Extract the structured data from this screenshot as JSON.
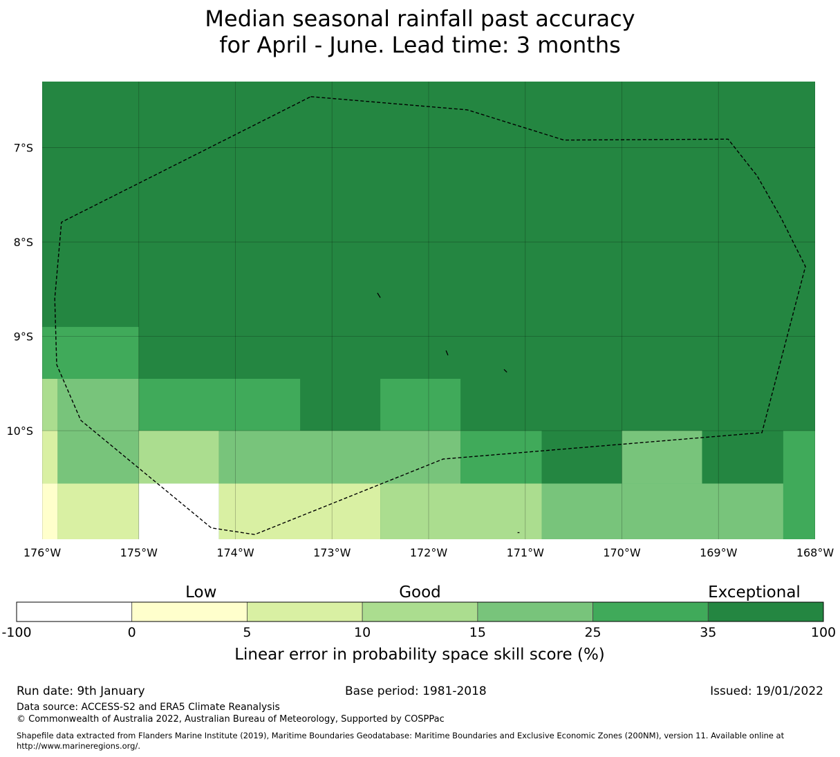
{
  "title": {
    "line1": "Median seasonal rainfall past accuracy",
    "line2": "for April - June. Lead time: 3 months"
  },
  "map": {
    "lon_range": [
      -176,
      -168
    ],
    "lat_range": [
      -11.15,
      -6.3
    ],
    "lon_ticks": [
      {
        "value": -176,
        "label": "176°W"
      },
      {
        "value": -175,
        "label": "175°W"
      },
      {
        "value": -174,
        "label": "174°W"
      },
      {
        "value": -173,
        "label": "173°W"
      },
      {
        "value": -172,
        "label": "172°W"
      },
      {
        "value": -171,
        "label": "171°W"
      },
      {
        "value": -170,
        "label": "170°W"
      },
      {
        "value": -169,
        "label": "169°W"
      },
      {
        "value": -168,
        "label": "168°W"
      }
    ],
    "lat_ticks": [
      {
        "value": -7,
        "label": "7°S"
      },
      {
        "value": -8,
        "label": "8°S"
      },
      {
        "value": -9,
        "label": "9°S"
      },
      {
        "value": -10,
        "label": "10°S"
      }
    ],
    "grid": true,
    "base_fill": "#248641",
    "cells": [
      {
        "lon": [
          -176,
          -175
        ],
        "lat": [
          -8.9,
          -9.45
        ],
        "color": "#40aa5a"
      },
      {
        "lon": [
          -176,
          -175.84
        ],
        "lat": [
          -9.45,
          -10.0
        ],
        "color": "#abdd8f"
      },
      {
        "lon": [
          -175.84,
          -175
        ],
        "lat": [
          -9.45,
          -10.0
        ],
        "color": "#78c47b"
      },
      {
        "lon": [
          -175,
          -173.33
        ],
        "lat": [
          -9.45,
          -10.0
        ],
        "color": "#40aa5a"
      },
      {
        "lon": [
          -172.5,
          -171.67
        ],
        "lat": [
          -9.45,
          -10.0
        ],
        "color": "#40aa5a"
      },
      {
        "lon": [
          -176,
          -175.84
        ],
        "lat": [
          -10.0,
          -10.56
        ],
        "color": "#d9f0a3"
      },
      {
        "lon": [
          -175.84,
          -175
        ],
        "lat": [
          -10.0,
          -10.56
        ],
        "color": "#78c47b"
      },
      {
        "lon": [
          -175,
          -174.17
        ],
        "lat": [
          -10.0,
          -10.56
        ],
        "color": "#abdd8f"
      },
      {
        "lon": [
          -174.17,
          -171.67
        ],
        "lat": [
          -10.0,
          -10.56
        ],
        "color": "#78c47b"
      },
      {
        "lon": [
          -171.67,
          -170.83
        ],
        "lat": [
          -10.0,
          -10.56
        ],
        "color": "#40aa5a"
      },
      {
        "lon": [
          -170.83,
          -170
        ],
        "lat": [
          -10.0,
          -10.56
        ],
        "color": "#248641"
      },
      {
        "lon": [
          -170,
          -169.17
        ],
        "lat": [
          -10.0,
          -10.56
        ],
        "color": "#78c47b"
      },
      {
        "lon": [
          -169.17,
          -168.33
        ],
        "lat": [
          -10.0,
          -10.56
        ],
        "color": "#248641"
      },
      {
        "lon": [
          -168.33,
          -168
        ],
        "lat": [
          -10.0,
          -11.15
        ],
        "color": "#40aa5a"
      },
      {
        "lon": [
          -176,
          -175.84
        ],
        "lat": [
          -10.56,
          -11.15
        ],
        "color": "#ffffcc"
      },
      {
        "lon": [
          -175.84,
          -175
        ],
        "lat": [
          -10.56,
          -11.15
        ],
        "color": "#d9f0a3"
      },
      {
        "lon": [
          -175,
          -174.17
        ],
        "lat": [
          -10.56,
          -11.15
        ],
        "color": "#ffffff"
      },
      {
        "lon": [
          -174.17,
          -172.5
        ],
        "lat": [
          -10.56,
          -11.15
        ],
        "color": "#d9f0a3"
      },
      {
        "lon": [
          -172.5,
          -170.83
        ],
        "lat": [
          -10.56,
          -11.15
        ],
        "color": "#abdd8f"
      },
      {
        "lon": [
          -170.83,
          -168.33
        ],
        "lat": [
          -10.56,
          -11.15
        ],
        "color": "#78c47b"
      }
    ],
    "boundary": [
      [
        -173.22,
        -6.46
      ],
      [
        -171.6,
        -6.6
      ],
      [
        -170.6,
        -6.92
      ],
      [
        -168.9,
        -6.91
      ],
      [
        -168.6,
        -7.3
      ],
      [
        -168.35,
        -7.75
      ],
      [
        -168.1,
        -8.26
      ],
      [
        -168.55,
        -10.02
      ],
      [
        -171.85,
        -10.3
      ],
      [
        -173.8,
        -11.1
      ],
      [
        -174.25,
        -11.03
      ],
      [
        -175.6,
        -9.89
      ],
      [
        -175.85,
        -9.3
      ],
      [
        -175.87,
        -8.6
      ],
      [
        -175.8,
        -7.79
      ],
      [
        -173.22,
        -6.46
      ]
    ],
    "islands": [
      [
        [
          -172.53,
          -8.54
        ],
        [
          -172.5,
          -8.59
        ]
      ],
      [
        [
          -171.82,
          -9.15
        ],
        [
          -171.8,
          -9.2
        ]
      ],
      [
        [
          -171.22,
          -9.35
        ],
        [
          -171.19,
          -9.38
        ]
      ],
      [
        [
          -171.08,
          -11.08
        ],
        [
          -171.06,
          -11.08
        ]
      ]
    ]
  },
  "legend": {
    "categories": [
      "Low",
      "Good",
      "Exceptional"
    ],
    "bins": [
      {
        "from": -100,
        "to": 0,
        "color": "#ffffff"
      },
      {
        "from": 0,
        "to": 5,
        "color": "#ffffcc"
      },
      {
        "from": 5,
        "to": 10,
        "color": "#d9f0a3"
      },
      {
        "from": 10,
        "to": 15,
        "color": "#abdd8f"
      },
      {
        "from": 15,
        "to": 25,
        "color": "#78c47b"
      },
      {
        "from": 25,
        "to": 35,
        "color": "#40aa5a"
      },
      {
        "from": 35,
        "to": 100,
        "color": "#248641"
      }
    ],
    "tick_labels": [
      "-100",
      "0",
      "5",
      "10",
      "15",
      "25",
      "35",
      "100"
    ],
    "label": "Linear error in probability space skill score (%)"
  },
  "footer": {
    "run_date": "Run date: 9th January",
    "base_period": "Base period: 1981-2018",
    "issued": "Issued: 19/01/2022",
    "data_source": "Data source: ACCESS-S2 and ERA5 Climate Reanalysis",
    "copyright": "© Commonwealth of Australia 2022, Australian Bureau of Meteorology, Supported by COSPPac",
    "shapefile_line1": "Shapefile data extracted from Flanders Marine Institute (2019), Maritime Boundaries Geodatabase: Maritime Boundaries and Exclusive Economic Zones (200NM), version 11. Available online at",
    "shapefile_line2": "http://www.marineregions.org/."
  }
}
